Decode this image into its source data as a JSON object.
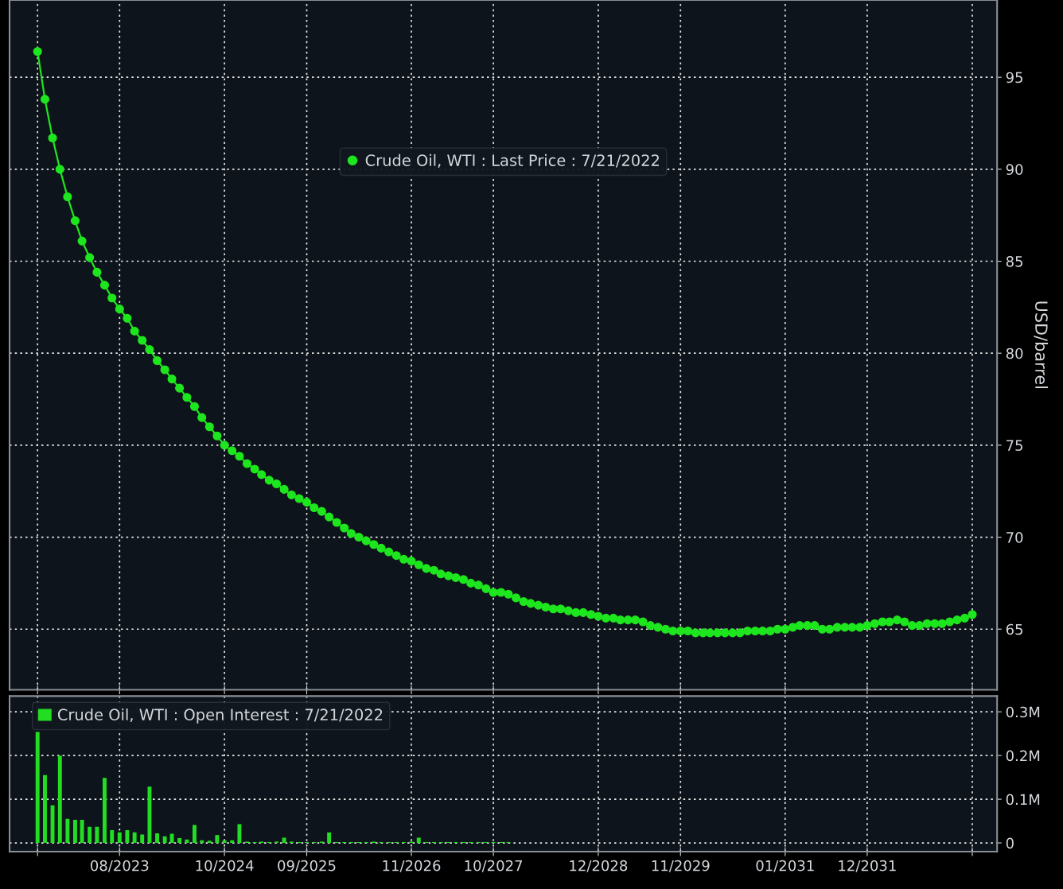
{
  "chart_data": [
    {
      "type": "line",
      "ylabel": "USD/barrel",
      "marker": "circle",
      "line_style": "solid",
      "grid": true,
      "legend": "top",
      "tick_labels": "y",
      "x": [
        "2022-09",
        "2022-10",
        "2022-11",
        "2022-12",
        "2023-01",
        "2023-02",
        "2023-03",
        "2023-04",
        "2023-05",
        "2023-06",
        "2023-07",
        "2023-08",
        "2023-09",
        "2023-10",
        "2023-11",
        "2023-12",
        "2024-01",
        "2024-02",
        "2024-03",
        "2024-04",
        "2024-05",
        "2024-06",
        "2024-07",
        "2024-08",
        "2024-09",
        "2024-10",
        "2024-11",
        "2024-12",
        "2025-01",
        "2025-02",
        "2025-03",
        "2025-04",
        "2025-05",
        "2025-06",
        "2025-07",
        "2025-08",
        "2025-09",
        "2025-10",
        "2025-11",
        "2025-12",
        "2026-01",
        "2026-02",
        "2026-03",
        "2026-04",
        "2026-05",
        "2026-06",
        "2026-07",
        "2026-08",
        "2026-09",
        "2026-10",
        "2026-11",
        "2026-12",
        "2027-01",
        "2027-02",
        "2027-03",
        "2027-04",
        "2027-05",
        "2027-06",
        "2027-07",
        "2027-08",
        "2027-09",
        "2027-10",
        "2027-11",
        "2027-12",
        "2028-01",
        "2028-02",
        "2028-03",
        "2028-04",
        "2028-05",
        "2028-06",
        "2028-07",
        "2028-08",
        "2028-09",
        "2028-10",
        "2028-11",
        "2028-12",
        "2029-01",
        "2029-02",
        "2029-03",
        "2029-04",
        "2029-05",
        "2029-06",
        "2029-07",
        "2029-08",
        "2029-09",
        "2029-10",
        "2029-11",
        "2029-12",
        "2030-01",
        "2030-02",
        "2030-03",
        "2030-04",
        "2030-05",
        "2030-06",
        "2030-07",
        "2030-08",
        "2030-09",
        "2030-10",
        "2030-11",
        "2030-12",
        "2031-01",
        "2031-02",
        "2031-03",
        "2031-04",
        "2031-05",
        "2031-06",
        "2031-07",
        "2031-08",
        "2031-09",
        "2031-10",
        "2031-11",
        "2031-12",
        "2032-01",
        "2032-02",
        "2032-03",
        "2032-04",
        "2032-05",
        "2032-06",
        "2032-07",
        "2032-08",
        "2032-09",
        "2032-10",
        "2032-11",
        "2032-12",
        "2033-01",
        "2033-02"
      ],
      "xlim": [
        "2022-05-10",
        "2033-05-13"
      ],
      "xticks": [
        {
          "value": "2022-09",
          "label": null
        },
        {
          "value": "2023-08",
          "label": null
        },
        {
          "value": "2024-10",
          "label": null
        },
        {
          "value": "2025-09",
          "label": null
        },
        {
          "value": "2026-11",
          "label": null
        },
        {
          "value": "2027-10",
          "label": null
        },
        {
          "value": "2028-12",
          "label": null
        },
        {
          "value": "2029-11",
          "label": null
        },
        {
          "value": "2031-01",
          "label": null
        },
        {
          "value": "2031-12",
          "label": null
        },
        {
          "value": "2033-02",
          "label": null
        }
      ],
      "ylim": [
        61.7,
        99.2
      ],
      "yticks": [
        65,
        70,
        75,
        80,
        85,
        90,
        95
      ],
      "series": [
        {
          "name": "Crude Oil, WTI : Last Price : 7/21/2022",
          "color": "#1ee61e",
          "values": [
            96.4,
            93.8,
            91.7,
            90.0,
            88.5,
            87.2,
            86.1,
            85.2,
            84.4,
            83.7,
            83.0,
            82.4,
            81.9,
            81.2,
            80.7,
            80.2,
            79.6,
            79.1,
            78.6,
            78.1,
            77.6,
            77.1,
            76.5,
            76.0,
            75.5,
            75.0,
            74.7,
            74.4,
            74.0,
            73.7,
            73.4,
            73.1,
            72.9,
            72.6,
            72.3,
            72.1,
            71.9,
            71.6,
            71.4,
            71.1,
            70.8,
            70.5,
            70.2,
            70.0,
            69.8,
            69.6,
            69.4,
            69.2,
            69.0,
            68.8,
            68.7,
            68.5,
            68.3,
            68.2,
            68.0,
            67.9,
            67.8,
            67.7,
            67.5,
            67.4,
            67.2,
            67.0,
            67.0,
            66.9,
            66.7,
            66.5,
            66.4,
            66.3,
            66.2,
            66.1,
            66.1,
            66.0,
            65.9,
            65.9,
            65.8,
            65.7,
            65.6,
            65.6,
            65.5,
            65.5,
            65.5,
            65.4,
            65.2,
            65.1,
            65.0,
            64.9,
            64.9,
            64.9,
            64.8,
            64.8,
            64.8,
            64.8,
            64.8,
            64.8,
            64.8,
            64.9,
            64.9,
            64.9,
            64.9,
            65.0,
            65.0,
            65.1,
            65.2,
            65.2,
            65.2,
            65.0,
            65.0,
            65.1,
            65.1,
            65.1,
            65.1,
            65.2,
            65.3,
            65.4,
            65.4,
            65.5,
            65.4,
            65.2,
            65.2,
            65.3,
            65.3,
            65.3,
            65.4,
            65.5,
            65.6,
            65.8
          ]
        }
      ]
    },
    {
      "type": "bar",
      "grid": true,
      "legend": "top left",
      "x": [
        "2022-09",
        "2022-10",
        "2022-11",
        "2022-12",
        "2023-01",
        "2023-02",
        "2023-03",
        "2023-04",
        "2023-05",
        "2023-06",
        "2023-07",
        "2023-08",
        "2023-09",
        "2023-10",
        "2023-11",
        "2023-12",
        "2024-01",
        "2024-02",
        "2024-03",
        "2024-04",
        "2024-05",
        "2024-06",
        "2024-07",
        "2024-08",
        "2024-09",
        "2024-10",
        "2024-11",
        "2024-12",
        "2025-01",
        "2025-02",
        "2025-03",
        "2025-04",
        "2025-05",
        "2025-06",
        "2025-07",
        "2025-08",
        "2025-09",
        "2025-10",
        "2025-11",
        "2025-12",
        "2026-01",
        "2026-02",
        "2026-03",
        "2026-04",
        "2026-05",
        "2026-06",
        "2026-07",
        "2026-08",
        "2026-09",
        "2026-10",
        "2026-11",
        "2026-12",
        "2027-01",
        "2027-02",
        "2027-03",
        "2027-04",
        "2027-05",
        "2027-06",
        "2027-07",
        "2027-08",
        "2027-09",
        "2027-10",
        "2027-11",
        "2027-12",
        "2028-01",
        "2028-02",
        "2028-03",
        "2028-04",
        "2028-05",
        "2028-06",
        "2028-07",
        "2028-08",
        "2028-09",
        "2028-10",
        "2028-11",
        "2028-12",
        "2029-01",
        "2029-02",
        "2029-03",
        "2029-04",
        "2029-05",
        "2029-06",
        "2029-07",
        "2029-08",
        "2029-09",
        "2029-10",
        "2029-11",
        "2029-12",
        "2030-01",
        "2030-02",
        "2030-03",
        "2030-04",
        "2030-05",
        "2030-06",
        "2030-07",
        "2030-08",
        "2030-09",
        "2030-10",
        "2030-11",
        "2030-12",
        "2031-01",
        "2031-02",
        "2031-03",
        "2031-04",
        "2031-05",
        "2031-06",
        "2031-07",
        "2031-08",
        "2031-09",
        "2031-10",
        "2031-11",
        "2031-12",
        "2032-01",
        "2032-02",
        "2032-03",
        "2032-04",
        "2032-05",
        "2032-06",
        "2032-07",
        "2032-08",
        "2032-09",
        "2032-10",
        "2032-11",
        "2032-12",
        "2033-01",
        "2033-02"
      ],
      "xlim": [
        "2022-05-10",
        "2033-05-13"
      ],
      "xticks": [
        {
          "value": "2022-09",
          "label": null
        },
        {
          "value": "2023-08",
          "label": "08/2023"
        },
        {
          "value": "2024-10",
          "label": "10/2024"
        },
        {
          "value": "2025-09",
          "label": "09/2025"
        },
        {
          "value": "2026-11",
          "label": "11/2026"
        },
        {
          "value": "2027-10",
          "label": "10/2027"
        },
        {
          "value": "2028-12",
          "label": "12/2028"
        },
        {
          "value": "2029-11",
          "label": "11/2029"
        },
        {
          "value": "2031-01",
          "label": "01/2031"
        },
        {
          "value": "2031-12",
          "label": "12/2031"
        },
        {
          "value": "2033-02",
          "label": null
        }
      ],
      "ylim": [
        -0.02,
        0.336
      ],
      "yticks": [
        0,
        {
          "value": 0.1,
          "label": "0.1M"
        },
        {
          "value": 0.2,
          "label": "0.2M"
        },
        {
          "value": 0.3,
          "label": "0.3M"
        }
      ],
      "series": [
        {
          "name": "Crude Oil, WTI : Open Interest : 7/21/2022",
          "color": "#22dd22",
          "values": [
            0.254,
            0.155,
            0.086,
            0.2,
            0.055,
            0.053,
            0.053,
            0.037,
            0.037,
            0.149,
            0.029,
            0.024,
            0.029,
            0.024,
            0.019,
            0.129,
            0.022,
            0.015,
            0.021,
            0.011,
            0.008,
            0.041,
            0.006,
            0.005,
            0.018,
            0.006,
            0.006,
            0.043,
            0.003,
            0.002,
            0.003,
            0.002,
            0.003,
            0.012,
            0.003,
            0.002,
            0.002,
            0.002,
            0.003,
            0.024,
            0.002,
            0.002,
            0.002,
            0.002,
            0.002,
            0.003,
            0.002,
            0.002,
            0.002,
            0.002,
            0.003,
            0.012,
            0.002,
            0.002,
            0.002,
            0.002,
            0.002,
            0.002,
            0.002,
            0.002,
            0.002,
            0.002,
            0.002,
            0.002,
            0,
            0,
            0,
            0,
            0,
            0,
            0,
            0,
            0,
            0,
            0,
            0,
            0,
            0,
            0,
            0,
            0,
            0,
            0,
            0,
            0,
            0,
            0,
            0,
            0,
            0,
            0,
            0,
            0,
            0,
            0,
            0,
            0,
            0,
            0,
            0,
            0,
            0,
            0,
            0,
            0,
            0,
            0,
            0,
            0,
            0,
            0,
            0,
            0,
            0,
            0,
            0,
            0,
            0,
            0,
            0,
            0,
            0,
            0,
            0,
            0,
            0
          ]
        }
      ]
    }
  ]
}
